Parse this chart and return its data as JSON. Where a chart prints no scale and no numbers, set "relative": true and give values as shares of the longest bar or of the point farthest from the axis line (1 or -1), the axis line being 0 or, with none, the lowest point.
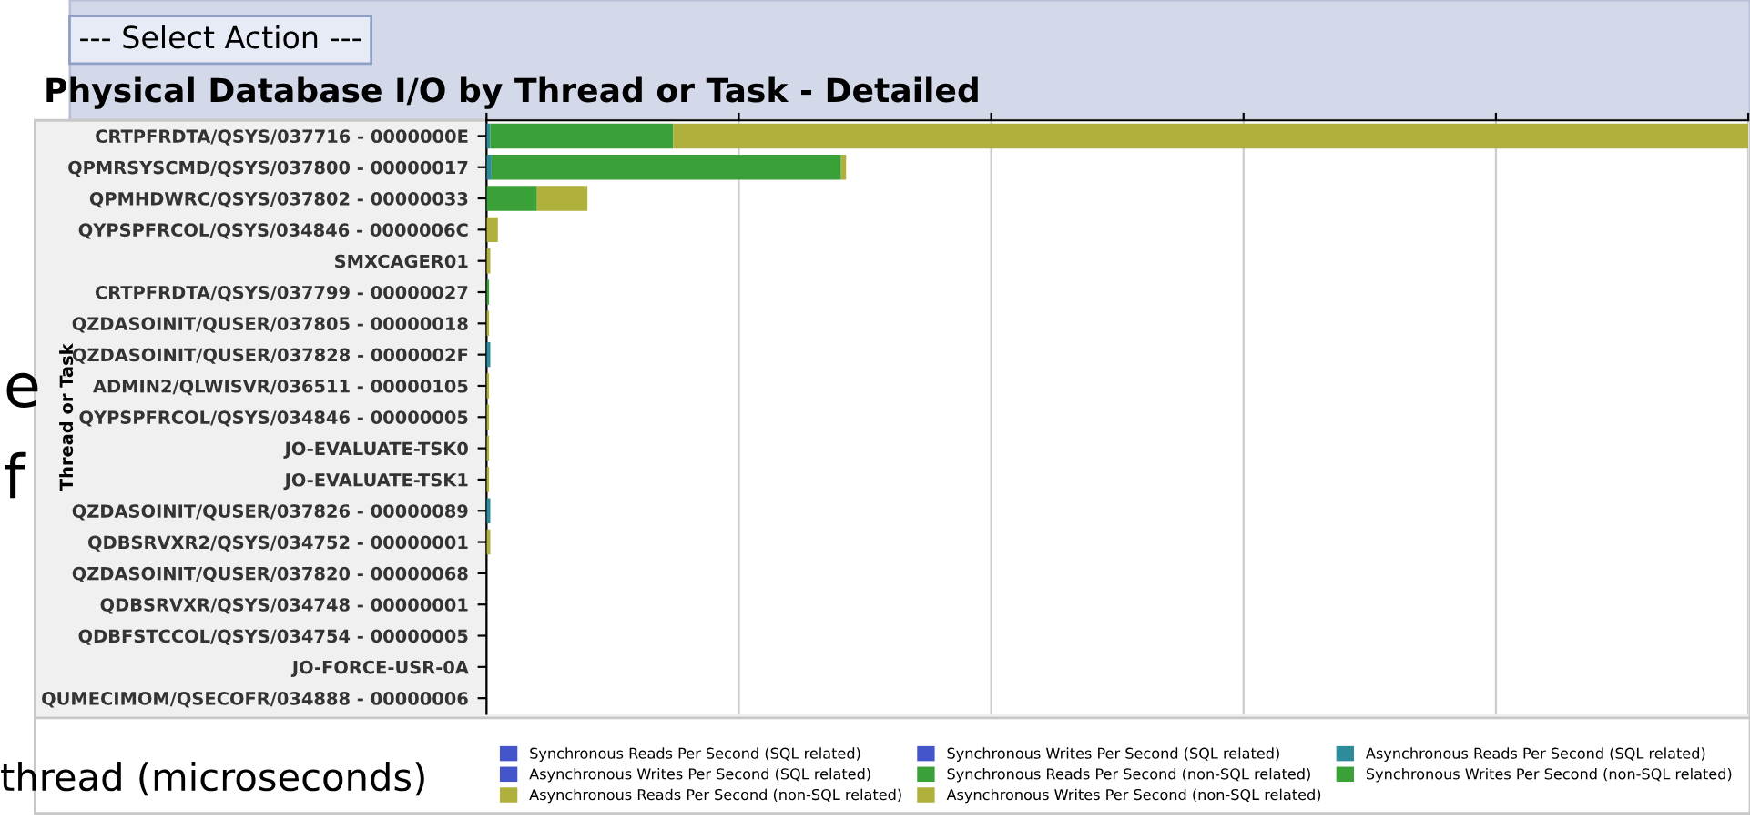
{
  "chart_data": {
    "type": "bar",
    "orientation": "horizontal",
    "stacked": true,
    "relative": true,
    "title": "Physical Database I/O by Thread or Task - Detailed",
    "ylabel": "Thread or Task",
    "categories": [
      "CRTPFRDTA/QSYS/037716 - 0000000E",
      "QPMRSYSCMD/QSYS/037800 - 00000017",
      "QPMHDWRC/QSYS/037802 - 00000033",
      "QYPSPFRCOL/QSYS/034846 - 0000006C",
      "SMXCAGER01",
      "CRTPFRDTA/QSYS/037799 - 00000027",
      "QZDASOINIT/QUSER/037805 - 00000018",
      "QZDASOINIT/QUSER/037828 - 0000002F",
      "ADMIN2/QLWISVR/036511 - 00000105",
      "QYPSPFRCOL/QSYS/034846 - 00000005",
      "JO-EVALUATE-TSK0",
      "JO-EVALUATE-TSK1",
      "QZDASOINIT/QUSER/037826 - 00000089",
      "QDBSRVXR2/QSYS/034752 - 00000001",
      "QZDASOINIT/QUSER/037820 - 00000068",
      "QDBSRVXR/QSYS/034748 - 00000001",
      "QDBFSTCCOL/QSYS/034754 - 00000005",
      "JO-FORCE-USR-0A",
      "QUMECIMOM/QSECOFR/034888 - 00000006"
    ],
    "series": [
      {
        "name": "Synchronous Reads Per Second (SQL related)",
        "color": "#4455cc",
        "values": [
          0,
          0,
          0,
          0,
          0,
          0,
          0,
          0,
          0,
          0,
          0,
          0,
          0,
          0,
          0,
          0,
          0,
          0,
          0
        ]
      },
      {
        "name": "Synchronous Writes Per Second (SQL related)",
        "color": "#4455cc",
        "values": [
          0,
          0,
          0,
          0,
          0,
          0,
          0,
          0,
          0,
          0,
          0,
          0,
          0,
          0,
          0,
          0,
          0,
          0,
          0
        ]
      },
      {
        "name": "Asynchronous Reads Per Second (SQL related)",
        "color": "#2e8b9a",
        "values": [
          0.003,
          0.004,
          0,
          0,
          0,
          0,
          0,
          0.003,
          0,
          0,
          0,
          0,
          0.003,
          0,
          0,
          0,
          0,
          0,
          0
        ]
      },
      {
        "name": "Asynchronous Writes Per Second (SQL related)",
        "color": "#4455cc",
        "values": [
          0,
          0,
          0,
          0,
          0,
          0,
          0,
          0,
          0,
          0,
          0,
          0,
          0,
          0,
          0,
          0,
          0,
          0,
          0
        ]
      },
      {
        "name": "Synchronous Reads Per Second (non-SQL related)",
        "color": "#3aa038",
        "values": [
          0.145,
          0.277,
          0.04,
          0,
          0,
          0.002,
          0,
          0,
          0,
          0,
          0,
          0,
          0,
          0,
          0,
          0,
          0,
          0,
          0
        ]
      },
      {
        "name": "Synchronous Writes Per Second (non-SQL related)",
        "color": "#3aa038",
        "values": [
          0,
          0,
          0,
          0,
          0,
          0,
          0,
          0,
          0,
          0,
          0,
          0,
          0,
          0,
          0,
          0,
          0,
          0,
          0
        ]
      },
      {
        "name": "Asynchronous Reads Per Second (non-SQL related)",
        "color": "#b0b03c",
        "values": [
          0.852,
          0.004,
          0.04,
          0.009,
          0.003,
          0,
          0.002,
          0,
          0.002,
          0.002,
          0.002,
          0.002,
          0,
          0.003,
          0,
          0,
          0,
          0,
          0
        ]
      },
      {
        "name": "Asynchronous Writes Per Second (non-SQL related)",
        "color": "#b0b03c",
        "values": [
          0,
          0,
          0,
          0,
          0,
          0,
          0,
          0,
          0,
          0,
          0,
          0,
          0,
          0,
          0,
          0,
          0,
          0,
          0
        ]
      }
    ],
    "grid": "x",
    "legend": "bottom",
    "annotations": [
      "--- Select Action ---",
      "e",
      "f",
      "thread (microseconds)"
    ]
  }
}
